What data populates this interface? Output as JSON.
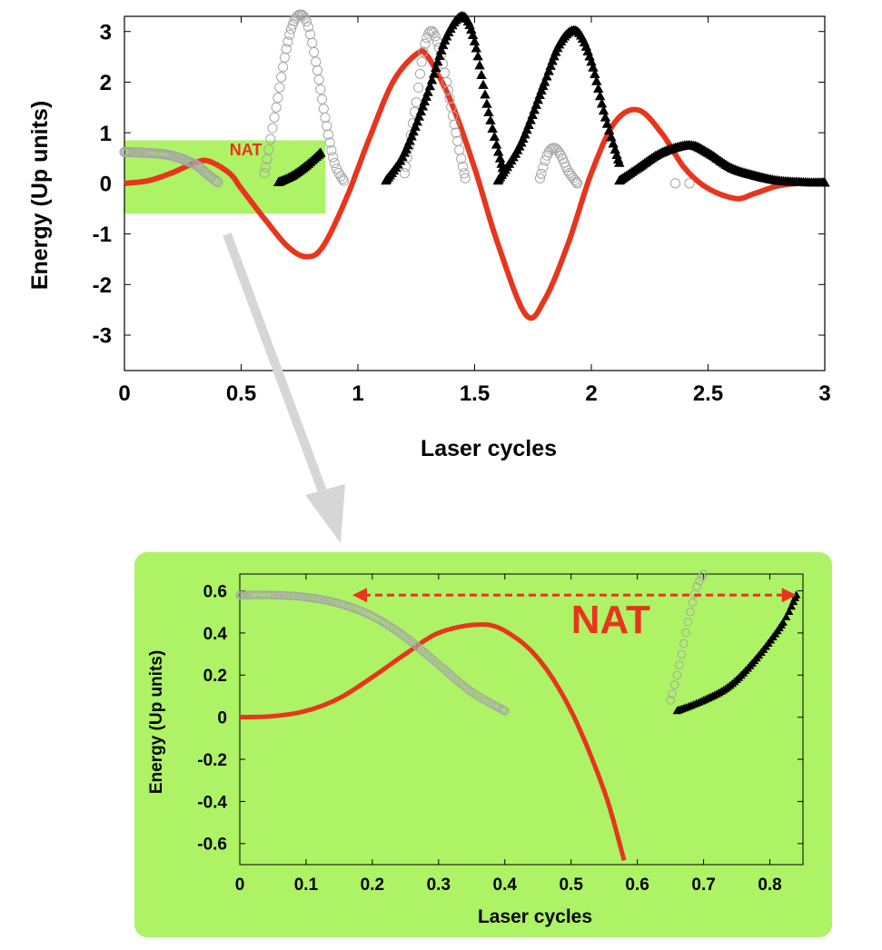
{
  "colors": {
    "curve": "#e8351d",
    "gray_markers": "#a6a6a6",
    "black_markers": "#000000",
    "highlight": "#adf365",
    "arrow": "#d6d6d6"
  },
  "chart_data": [
    {
      "type": "line",
      "title": "",
      "xlabel": "Laser cycles",
      "ylabel": "Energy (Up units)",
      "xlim": [
        0,
        3
      ],
      "ylim": [
        -3.7,
        3.3
      ],
      "xticks": [
        0,
        0.5,
        1,
        1.5,
        2,
        2.5,
        3
      ],
      "xtick_labels": [
        "0",
        "0.5",
        "1",
        "1.5",
        "2",
        "2.5",
        "3"
      ],
      "yticks": [
        3,
        2,
        1,
        0,
        -1,
        -2,
        -3
      ],
      "ytick_labels": [
        "3",
        "2",
        "1",
        "0",
        "-1",
        "-2",
        "-3"
      ],
      "highlight_box": {
        "x_range": [
          0,
          0.86
        ],
        "y_range": [
          -0.6,
          0.85
        ]
      },
      "annotations": [
        {
          "text": "NAT",
          "x": 0.52,
          "y": 0.55
        }
      ],
      "series": [
        {
          "name": "red curve",
          "style": "line",
          "x": [
            0,
            0.1,
            0.2,
            0.3,
            0.36,
            0.45,
            0.5,
            0.6,
            0.7,
            0.78,
            0.85,
            0.95,
            1.05,
            1.15,
            1.25,
            1.3,
            1.4,
            1.5,
            1.6,
            1.72,
            1.8,
            1.9,
            2.0,
            2.1,
            2.2,
            2.3,
            2.4,
            2.5,
            2.62,
            2.7,
            2.8,
            2.9,
            3.0
          ],
          "y": [
            0,
            0.05,
            0.2,
            0.4,
            0.44,
            0.2,
            -0.1,
            -0.7,
            -1.25,
            -1.45,
            -1.25,
            -0.3,
            0.9,
            2.0,
            2.55,
            2.5,
            1.6,
            0.3,
            -1.2,
            -2.6,
            -2.3,
            -1.2,
            0.2,
            1.2,
            1.45,
            1.0,
            0.3,
            -0.1,
            -0.3,
            -0.2,
            -0.05,
            0,
            0
          ]
        },
        {
          "name": "gray circles",
          "style": "open circles",
          "segments": [
            {
              "x": [
                0.0,
                0.1,
                0.2,
                0.3,
                0.35,
                0.4
              ],
              "y": [
                0.62,
                0.6,
                0.55,
                0.38,
                0.2,
                0.02
              ]
            },
            {
              "x": [
                0.6,
                0.65,
                0.7,
                0.74,
                0.78,
                0.82,
                0.86,
                0.9,
                0.94
              ],
              "y": [
                0.2,
                1.5,
                2.8,
                3.3,
                3.2,
                2.4,
                1.3,
                0.4,
                0.05
              ]
            },
            {
              "x": [
                1.2,
                1.25,
                1.28,
                1.31,
                1.34,
                1.38,
                1.42,
                1.46
              ],
              "y": [
                0.2,
                1.6,
                2.6,
                3.0,
                2.8,
                2.0,
                1.0,
                0.1
              ]
            },
            {
              "x": [
                1.78,
                1.81,
                1.84,
                1.87,
                1.9,
                1.94
              ],
              "y": [
                0.1,
                0.55,
                0.7,
                0.55,
                0.25,
                0.0
              ]
            },
            {
              "x": [
                2.36,
                2.42
              ],
              "y": [
                0.0,
                0.0
              ]
            }
          ]
        },
        {
          "name": "black triangles",
          "style": "filled triangles",
          "segments": [
            {
              "x": [
                0.66,
                0.72,
                0.78,
                0.84
              ],
              "y": [
                0.02,
                0.15,
                0.35,
                0.6
              ]
            },
            {
              "x": [
                1.12,
                1.2,
                1.3,
                1.38,
                1.45,
                1.5,
                1.56,
                1.62
              ],
              "y": [
                0.05,
                0.6,
                1.8,
                2.9,
                3.3,
                2.8,
                1.4,
                0.3
              ]
            },
            {
              "x": [
                1.6,
                1.7,
                1.8,
                1.87,
                1.94,
                2.0,
                2.06,
                2.12
              ],
              "y": [
                0.05,
                0.8,
                2.0,
                2.8,
                3.0,
                2.4,
                1.3,
                0.4
              ]
            },
            {
              "x": [
                2.12,
                2.2,
                2.3,
                2.42,
                2.5,
                2.6,
                2.7,
                2.8,
                2.9,
                3.0
              ],
              "y": [
                0.05,
                0.3,
                0.6,
                0.75,
                0.6,
                0.3,
                0.15,
                0.05,
                0.02,
                0.01
              ]
            }
          ]
        }
      ]
    },
    {
      "type": "line",
      "title": "",
      "xlabel": "Laser cycles",
      "ylabel": "Energy (Up units)",
      "xlim": [
        0,
        0.85
      ],
      "ylim": [
        -0.7,
        0.68
      ],
      "xticks": [
        0,
        0.1,
        0.2,
        0.3,
        0.4,
        0.5,
        0.6,
        0.7,
        0.8
      ],
      "xtick_labels": [
        "0",
        "0.1",
        "0.2",
        "0.3",
        "0.4",
        "0.5",
        "0.6",
        "0.7",
        "0.8"
      ],
      "yticks": [
        0.6,
        0.4,
        0.2,
        0,
        -0.2,
        -0.4,
        -0.6
      ],
      "ytick_labels": [
        "0.6",
        "0.4",
        "0.2",
        "0",
        "-0.2",
        "-0.4",
        "-0.6"
      ],
      "annotations": [
        {
          "text": "NAT",
          "x": 0.5,
          "y": 0.4
        }
      ],
      "double_arrow": {
        "x_from": 0.17,
        "x_to": 0.84,
        "y": 0.58
      },
      "series": [
        {
          "name": "red curve",
          "style": "line",
          "x": [
            0,
            0.05,
            0.1,
            0.15,
            0.2,
            0.25,
            0.3,
            0.36,
            0.4,
            0.45,
            0.5,
            0.55,
            0.58
          ],
          "y": [
            0,
            0.005,
            0.03,
            0.09,
            0.19,
            0.3,
            0.4,
            0.44,
            0.41,
            0.28,
            0.03,
            -0.35,
            -0.68
          ]
        },
        {
          "name": "gray circles",
          "style": "open circles",
          "segments": [
            {
              "x": [
                0,
                0.05,
                0.1,
                0.15,
                0.2,
                0.25,
                0.3,
                0.35,
                0.4
              ],
              "y": [
                0.58,
                0.58,
                0.57,
                0.54,
                0.48,
                0.38,
                0.25,
                0.12,
                0.03
              ]
            },
            {
              "x": [
                0.65,
                0.66,
                0.67,
                0.68,
                0.69,
                0.7
              ],
              "y": [
                0.08,
                0.2,
                0.35,
                0.5,
                0.62,
                0.68
              ]
            }
          ]
        },
        {
          "name": "black triangles",
          "style": "filled triangles",
          "segments": [
            {
              "x": [
                0.66,
                0.7,
                0.74,
                0.78,
                0.82,
                0.84
              ],
              "y": [
                0.03,
                0.08,
                0.15,
                0.28,
                0.45,
                0.58
              ]
            }
          ]
        }
      ]
    }
  ]
}
